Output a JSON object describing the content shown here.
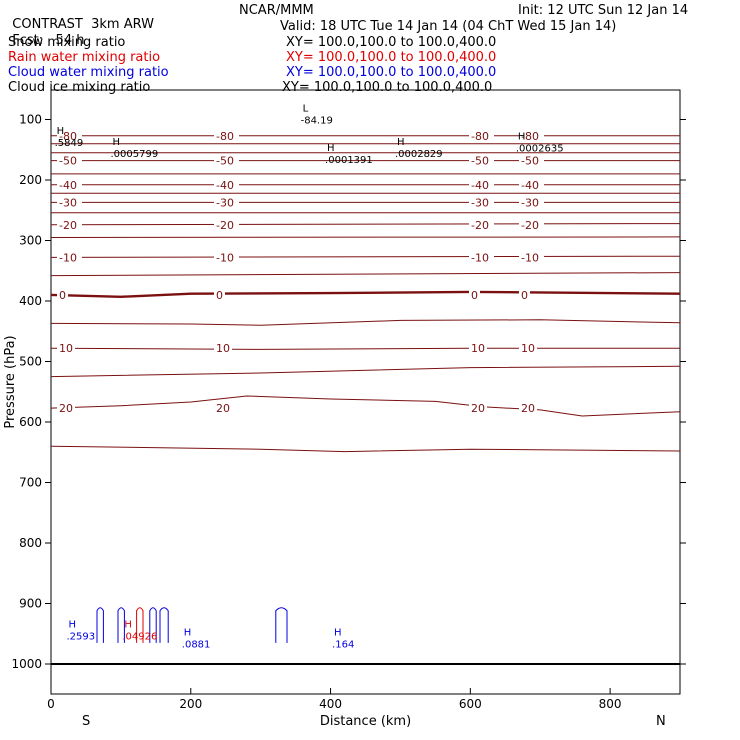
{
  "header": {
    "project": "CONTRAST",
    "model": "3km ARW",
    "org": "NCAR/MMM",
    "init": "Init: 12 UTC Sun 12 Jan 14",
    "fcst_label": "Fcst:",
    "fcst_value": "54 h",
    "valid": "Valid: 18 UTC Tue 14 Jan 14 (04 ChT Wed 15 Jan 14)"
  },
  "fields": [
    {
      "name": "Snow mixing ratio",
      "xy": "XY= 100.0,100.0 to 100.0,400.0",
      "color": "#000000"
    },
    {
      "name": "Rain water mixing ratio",
      "xy": "XY= 100.0,100.0 to 100.0,400.0",
      "color": "#e00000"
    },
    {
      "name": "Cloud water mixing ratio",
      "xy": "XY= 100.0,100.0 to 100.0,400.0",
      "color": "#0000e0"
    },
    {
      "name": "Cloud ice mixing ratio",
      "xy": "XY= 100.0,100.0 to 100.0,400.0",
      "color": "#000000"
    }
  ],
  "chart_data": {
    "type": "contour",
    "xlabel": "Distance (km)",
    "ylabel": "Pressure (hPa)",
    "xlim": [
      0,
      900
    ],
    "ylim": [
      1050,
      70
    ],
    "x_ticks": [
      0,
      200,
      400,
      600,
      800
    ],
    "y_ticks": [
      100,
      200,
      300,
      400,
      500,
      600,
      700,
      800,
      900,
      1000
    ],
    "x_end_labels": {
      "left": "S",
      "right": "N"
    },
    "temperature_contours": [
      {
        "value": -80,
        "label": "-80",
        "profile": [
          [
            0,
            127
          ],
          [
            900,
            127
          ]
        ]
      },
      {
        "value": -70,
        "label": "",
        "profile": [
          [
            0,
            140
          ],
          [
            900,
            140
          ]
        ]
      },
      {
        "value": -60,
        "label": "",
        "profile": [
          [
            0,
            155
          ],
          [
            900,
            155
          ]
        ]
      },
      {
        "value": -50,
        "label": "-50",
        "profile": [
          [
            0,
            168
          ],
          [
            900,
            168
          ]
        ]
      },
      {
        "value": -45,
        "label": "",
        "profile": [
          [
            0,
            190
          ],
          [
            900,
            190
          ]
        ]
      },
      {
        "value": -40,
        "label": "-40",
        "profile": [
          [
            0,
            208
          ],
          [
            900,
            208
          ]
        ]
      },
      {
        "value": -35,
        "label": "",
        "profile": [
          [
            0,
            222
          ],
          [
            900,
            222
          ]
        ]
      },
      {
        "value": -30,
        "label": "-30",
        "profile": [
          [
            0,
            237
          ],
          [
            900,
            237
          ]
        ]
      },
      {
        "value": -25,
        "label": "",
        "profile": [
          [
            0,
            254
          ],
          [
            900,
            254
          ]
        ]
      },
      {
        "value": -20,
        "label": "-20",
        "profile": [
          [
            0,
            274
          ],
          [
            900,
            272
          ]
        ]
      },
      {
        "value": -15,
        "label": "",
        "profile": [
          [
            0,
            295
          ],
          [
            900,
            294
          ]
        ]
      },
      {
        "value": -10,
        "label": "-10",
        "profile": [
          [
            0,
            328
          ],
          [
            900,
            326
          ]
        ]
      },
      {
        "value": -5,
        "label": "",
        "profile": [
          [
            0,
            358
          ],
          [
            900,
            353
          ]
        ]
      },
      {
        "value": 0,
        "label": "0",
        "profile": [
          [
            0,
            390
          ],
          [
            100,
            393
          ],
          [
            200,
            388
          ],
          [
            400,
            387
          ],
          [
            600,
            385
          ],
          [
            900,
            388
          ]
        ]
      },
      {
        "value": 5,
        "label": "",
        "profile": [
          [
            0,
            437
          ],
          [
            200,
            438
          ],
          [
            300,
            440
          ],
          [
            500,
            432
          ],
          [
            700,
            431
          ],
          [
            900,
            436
          ]
        ]
      },
      {
        "value": 10,
        "label": "10",
        "profile": [
          [
            0,
            478
          ],
          [
            300,
            480
          ],
          [
            600,
            478
          ],
          [
            900,
            478
          ]
        ]
      },
      {
        "value": 15,
        "label": "",
        "profile": [
          [
            0,
            525
          ],
          [
            300,
            519
          ],
          [
            600,
            510
          ],
          [
            900,
            508
          ]
        ]
      },
      {
        "value": 20,
        "label": "20",
        "profile": [
          [
            0,
            577
          ],
          [
            100,
            573
          ],
          [
            200,
            567
          ],
          [
            280,
            557
          ],
          [
            400,
            562
          ],
          [
            550,
            566
          ],
          [
            620,
            575
          ],
          [
            700,
            580
          ],
          [
            760,
            590
          ],
          [
            900,
            583
          ]
        ]
      },
      {
        "value": 25,
        "label": "",
        "profile": [
          [
            0,
            640
          ],
          [
            300,
            645
          ],
          [
            420,
            649
          ],
          [
            600,
            645
          ],
          [
            900,
            648
          ]
        ]
      }
    ],
    "annotations": [
      {
        "type": "L",
        "label": "-84.19",
        "x": 360,
        "p": 87,
        "color": "#000000"
      },
      {
        "type": "H",
        "label": ".5849",
        "x": 8,
        "p": 124,
        "color": "#000000"
      },
      {
        "type": "H",
        "label": ".0005799",
        "x": 88,
        "p": 142,
        "color": "#000000"
      },
      {
        "type": "H",
        "label": ".0001391",
        "x": 395,
        "p": 152,
        "color": "#000000"
      },
      {
        "type": "H",
        "label": ".0002829",
        "x": 495,
        "p": 142,
        "color": "#000000"
      },
      {
        "type": "H",
        "label": ".0002635",
        "x": 668,
        "p": 133,
        "color": "#000000"
      },
      {
        "type": "H",
        "label": ".2593",
        "x": 25,
        "p": 940,
        "color": "#0000e0"
      },
      {
        "type": "H",
        "label": ".04926",
        "x": 105,
        "p": 940,
        "color": "#e00000"
      },
      {
        "type": "H",
        "label": ".0881",
        "x": 190,
        "p": 953,
        "color": "#0000e0"
      },
      {
        "type": "H",
        "label": ".164",
        "x": 405,
        "p": 953,
        "color": "#0000e0"
      }
    ]
  }
}
